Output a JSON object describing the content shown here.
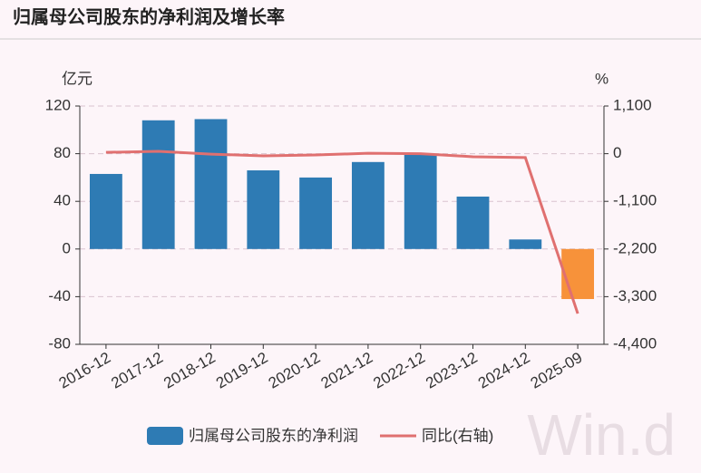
{
  "chart_data": {
    "type": "bar-line",
    "title": "归属母公司股东的净利润及增长率",
    "y_label": "亿元",
    "y2_label": "%",
    "watermark": "Win.d",
    "categories": [
      "2016-12",
      "2017-12",
      "2018-12",
      "2019-12",
      "2020-12",
      "2021-12",
      "2022-12",
      "2023-12",
      "2024-12",
      "2025-09"
    ],
    "series": [
      {
        "name": "归属母公司股东的净利润",
        "type": "bar",
        "color": "#2e7bb4",
        "colors": [
          "#2e7bb4",
          "#2e7bb4",
          "#2e7bb4",
          "#2e7bb4",
          "#2e7bb4",
          "#2e7bb4",
          "#2e7bb4",
          "#2e7bb4",
          "#2e7bb4",
          "#f7923a"
        ],
        "values": [
          63,
          108,
          109,
          66,
          60,
          73,
          80,
          44,
          8,
          -42
        ]
      },
      {
        "name": "同比(右轴)",
        "type": "line",
        "color": "#e07070",
        "axis": "y2",
        "values": [
          30,
          55,
          -10,
          -50,
          -30,
          10,
          0,
          -70,
          -90,
          -3690
        ]
      }
    ],
    "ylim": [
      -80,
      120
    ],
    "yticks": [
      -80,
      -40,
      0,
      40,
      80,
      120
    ],
    "y2lim": [
      -4400,
      1100
    ],
    "y2ticks": [
      {
        "value": -4400,
        "label": "-4,400"
      },
      {
        "value": -3300,
        "label": "-3,300"
      },
      {
        "value": -2200,
        "label": "-2,200"
      },
      {
        "value": -1100,
        "label": "-1,100"
      },
      0,
      {
        "value": 1100,
        "label": "1,100"
      }
    ],
    "grid": true
  }
}
